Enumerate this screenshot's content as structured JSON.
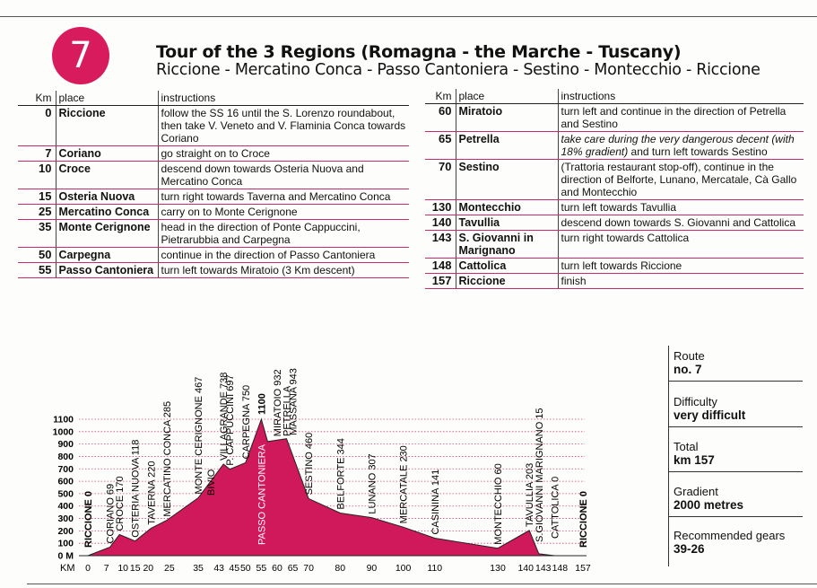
{
  "badge": "7",
  "title": "Tour of the 3 Regions (Romagna - the Marche - Tuscany)",
  "subtitle": "Riccione - Mercatino Conca - Passo Cantoniera - Sestino - Montecchio - Riccione",
  "table_headers": {
    "km": "Km",
    "place": "place",
    "instructions": "instructions"
  },
  "table_left": [
    {
      "km": "0",
      "place": "Riccione",
      "instructions": "follow the SS 16 until the S. Lorenzo roundabout, then take V. Veneto and V. Flaminia Conca towards Coriano"
    },
    {
      "km": "7",
      "place": "Coriano",
      "instructions": "go straight on to Croce"
    },
    {
      "km": "10",
      "place": "Croce",
      "instructions": "descend down towards Osteria Nuova and Mercatino Conca"
    },
    {
      "km": "15",
      "place": "Osteria Nuova",
      "instructions": "turn right towards Taverna and Mercatino Conca"
    },
    {
      "km": "25",
      "place": "Mercatino Conca",
      "instructions": "carry on to Monte Cerignone"
    },
    {
      "km": "35",
      "place": "Monte Cerignone",
      "instructions": "head in the direction of Ponte Cappuccini, Pietrarubbia and Carpegna"
    },
    {
      "km": "50",
      "place": "Carpegna",
      "instructions": "continue in the direction of Passo Cantoniera"
    },
    {
      "km": "55",
      "place": "Passo Cantoniera",
      "instructions": "turn left towards Miratoio (3 Km descent)"
    }
  ],
  "table_right": [
    {
      "km": "60",
      "place": "Miratoio",
      "instructions": "turn left and continue in the direction of Petrella and Sestino"
    },
    {
      "km": "65",
      "place": "Petrella",
      "instructions": "take care during the very dangerous decent (with 18% gradient)",
      "instructions_cont": " and turn left towards Sestino"
    },
    {
      "km": "70",
      "place": "Sestino",
      "instructions": "(Trattoria restaurant stop-off), continue in the direction of Belforte, Lunano, Mercatale, Cà Gallo and Montecchio"
    },
    {
      "km": "130",
      "place": "Montecchio",
      "instructions": "turn left towards Tavullia"
    },
    {
      "km": "140",
      "place": "Tavullia",
      "instructions": "descend down towards S. Giovanni and Cattolica"
    },
    {
      "km": "143",
      "place": "S. Giovanni in Marignano",
      "instructions": "turn right towards Cattolica"
    },
    {
      "km": "148",
      "place": "Cattolica",
      "instructions": "turn left towards Riccione"
    },
    {
      "km": "157",
      "place": "Riccione",
      "instructions": "finish"
    }
  ],
  "info": [
    {
      "label": "Route",
      "value": "no. 7"
    },
    {
      "label": "Difficulty",
      "value": "very difficult"
    },
    {
      "label": "Total",
      "value": "km 157"
    },
    {
      "label": "Gradient",
      "value": "2000 metres"
    },
    {
      "label": "Recommended gears",
      "value": "39-26"
    }
  ],
  "chart_data": {
    "type": "area",
    "fill_color": "#d0195a",
    "xlabel": "KM",
    "ylim": [
      0,
      1100
    ],
    "yticks": [
      "0 M",
      "100",
      "200",
      "300",
      "400",
      "500",
      "600",
      "700",
      "800",
      "900",
      "1000",
      "1100"
    ],
    "ytick_values": [
      0,
      100,
      200,
      300,
      400,
      500,
      600,
      700,
      800,
      900,
      1000,
      1100
    ],
    "xtick_labels": [
      "0",
      "7",
      "10",
      "15",
      "20",
      "25",
      "35",
      "43",
      "45",
      "50",
      "55",
      "60",
      "65",
      "70",
      "80",
      "90",
      "100",
      "110",
      "130",
      "140",
      "143",
      "148",
      "157"
    ],
    "xtick_values": [
      0,
      7,
      10,
      15,
      20,
      25,
      35,
      43,
      45,
      50,
      55,
      60,
      65,
      70,
      80,
      90,
      100,
      110,
      130,
      140,
      143,
      148,
      157
    ],
    "profile": [
      {
        "km": 0,
        "alt": 0
      },
      {
        "km": 7,
        "alt": 69
      },
      {
        "km": 10,
        "alt": 170
      },
      {
        "km": 15,
        "alt": 118
      },
      {
        "km": 20,
        "alt": 220
      },
      {
        "km": 25,
        "alt": 285
      },
      {
        "km": 35,
        "alt": 467
      },
      {
        "km": 43,
        "alt": 738
      },
      {
        "km": 45,
        "alt": 697
      },
      {
        "km": 50,
        "alt": 750
      },
      {
        "km": 55,
        "alt": 1100
      },
      {
        "km": 57,
        "alt": 920
      },
      {
        "km": 60,
        "alt": 932
      },
      {
        "km": 63,
        "alt": 943
      },
      {
        "km": 70,
        "alt": 460
      },
      {
        "km": 80,
        "alt": 344
      },
      {
        "km": 90,
        "alt": 307
      },
      {
        "km": 100,
        "alt": 230
      },
      {
        "km": 110,
        "alt": 141
      },
      {
        "km": 130,
        "alt": 60
      },
      {
        "km": 140,
        "alt": 203
      },
      {
        "km": 143,
        "alt": 15
      },
      {
        "km": 148,
        "alt": 0
      },
      {
        "km": 157,
        "alt": 0
      }
    ],
    "labels": [
      {
        "text": "RICCIONE 0",
        "km": 0,
        "alt": 0,
        "bold": true
      },
      {
        "text": "CORIANO 69",
        "km": 7,
        "alt": 69
      },
      {
        "text": "CROCE 170",
        "km": 10,
        "alt": 170
      },
      {
        "text": "OSTERIA NUOVA 118",
        "km": 15,
        "alt": 118
      },
      {
        "text": "TAVERNA 220",
        "km": 20,
        "alt": 220
      },
      {
        "text": "MERCATINO CONCA 285",
        "km": 25,
        "alt": 285
      },
      {
        "text": "MONTE CERIGNONE 467",
        "km": 35,
        "alt": 467
      },
      {
        "text": "BIVIO",
        "km": 39,
        "alt": 640
      },
      {
        "text": "VILLAGRANDE 738",
        "km": 43,
        "alt": 738
      },
      {
        "text": "P. CAPPUCCINI 697",
        "km": 45,
        "alt": 697
      },
      {
        "text": "CARPEGNA 750",
        "km": 50,
        "alt": 750
      },
      {
        "text": "PASSO CANTONIERA 1100",
        "km": 55,
        "alt": 1100,
        "bold": true
      },
      {
        "text": "MIRATOIO 932",
        "km": 60,
        "alt": 932
      },
      {
        "text": "PETRELLA",
        "km": 63,
        "alt": 943
      },
      {
        "text": "MASSANA 943",
        "km": 65,
        "alt": 943
      },
      {
        "text": "SESTINO 460",
        "km": 70,
        "alt": 460
      },
      {
        "text": "BELFORTE 344",
        "km": 80,
        "alt": 344
      },
      {
        "text": "LUNANO 307",
        "km": 90,
        "alt": 307
      },
      {
        "text": "MERCATALE 230",
        "km": 100,
        "alt": 230
      },
      {
        "text": "CASININA 141",
        "km": 110,
        "alt": 141
      },
      {
        "text": "MONTECCHIO 60",
        "km": 130,
        "alt": 60
      },
      {
        "text": "TAVULLIA 203",
        "km": 140,
        "alt": 203
      },
      {
        "text": "S.GIOVANNI MARIGNANO 15",
        "km": 143,
        "alt": 15
      },
      {
        "text": "CATTOLICA 0",
        "km": 148,
        "alt": 0
      },
      {
        "text": "RICCIONE 0",
        "km": 157,
        "alt": 0,
        "bold": true
      }
    ]
  }
}
